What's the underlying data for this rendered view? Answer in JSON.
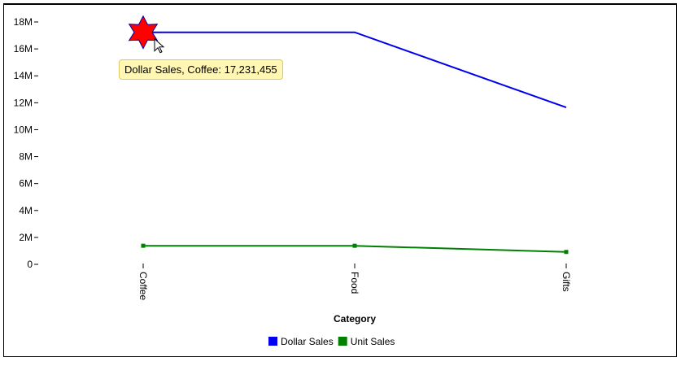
{
  "chart_data": {
    "type": "line",
    "categories": [
      "Coffee",
      "Food",
      "Gifts"
    ],
    "series": [
      {
        "name": "Dollar Sales",
        "color": "#0000ee",
        "values": [
          17231455,
          17230000,
          11650000
        ]
      },
      {
        "name": "Unit Sales",
        "color": "#008000",
        "values": [
          1380000,
          1380000,
          920000
        ]
      }
    ],
    "y_ticks": [
      "18M",
      "16M",
      "14M",
      "12M",
      "10M",
      "8M",
      "6M",
      "4M",
      "2M",
      "0"
    ],
    "ylim": [
      0,
      18000000
    ],
    "xlabel": "Category",
    "ylabel": "",
    "legend_position": "bottom-center",
    "grid": false
  },
  "tooltip": {
    "text": "Dollar Sales, Coffee: 17,231,455",
    "series_index": 0,
    "point_index": 0,
    "marker_color": "#ff0000"
  }
}
